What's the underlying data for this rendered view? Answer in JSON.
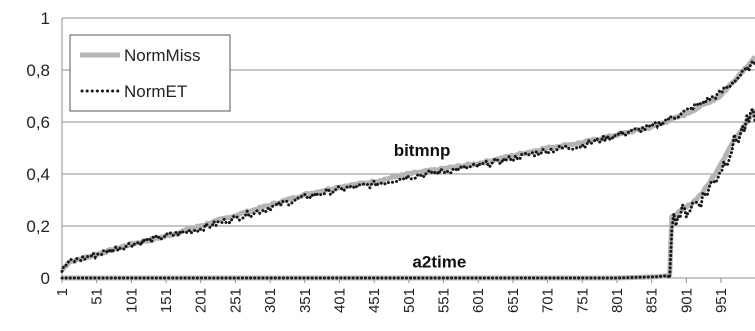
{
  "chart_data": {
    "type": "line",
    "title": "",
    "xlabel": "",
    "ylabel": "",
    "xlim": [
      1,
      1000
    ],
    "ylim": [
      0,
      1
    ],
    "grid": "horizontal",
    "legend_position": "top-left",
    "y_ticks": [
      "0",
      "0,2",
      "0,4",
      "0,6",
      "0,8",
      "1"
    ],
    "x_ticks": [
      "1",
      "51",
      "101",
      "151",
      "201",
      "251",
      "301",
      "351",
      "401",
      "451",
      "501",
      "551",
      "601",
      "651",
      "701",
      "751",
      "801",
      "851",
      "901",
      "951"
    ],
    "x_tick_values": [
      1,
      51,
      101,
      151,
      201,
      251,
      301,
      351,
      401,
      451,
      501,
      551,
      601,
      651,
      701,
      751,
      801,
      851,
      901,
      951
    ],
    "legend": [
      {
        "name": "NormMiss",
        "color": "#b5b5b5",
        "style": "solid"
      },
      {
        "name": "NormET",
        "color": "#1a1a1a",
        "style": "dotted"
      }
    ],
    "annotations": [
      {
        "text": "bitmnp",
        "x": 520,
        "y": 0.47
      },
      {
        "text": "a2time",
        "x": 545,
        "y": 0.04
      }
    ],
    "series": [
      {
        "name": "NormMiss",
        "group": "bitmnp",
        "x": [
          1,
          10,
          50,
          100,
          150,
          200,
          250,
          300,
          350,
          400,
          450,
          500,
          550,
          600,
          650,
          700,
          750,
          800,
          850,
          900,
          950,
          1000
        ],
        "values": [
          0.03,
          0.06,
          0.09,
          0.13,
          0.16,
          0.2,
          0.24,
          0.28,
          0.32,
          0.35,
          0.37,
          0.4,
          0.42,
          0.44,
          0.47,
          0.5,
          0.52,
          0.55,
          0.58,
          0.63,
          0.7,
          0.85
        ]
      },
      {
        "name": "NormET",
        "group": "bitmnp",
        "x": [
          1,
          10,
          50,
          100,
          150,
          200,
          250,
          300,
          350,
          400,
          450,
          500,
          550,
          600,
          650,
          700,
          750,
          800,
          850,
          900,
          950,
          1000
        ],
        "values": [
          0.03,
          0.06,
          0.09,
          0.13,
          0.16,
          0.19,
          0.23,
          0.27,
          0.31,
          0.34,
          0.36,
          0.39,
          0.41,
          0.43,
          0.46,
          0.49,
          0.51,
          0.55,
          0.58,
          0.64,
          0.71,
          0.83
        ]
      },
      {
        "name": "NormMiss",
        "group": "a2time",
        "x": [
          1,
          100,
          200,
          300,
          400,
          500,
          600,
          700,
          800,
          860,
          877,
          878,
          895,
          910,
          925,
          940,
          955,
          970,
          985,
          1000
        ],
        "values": [
          0.0,
          0.0,
          0.0,
          0.0,
          0.0,
          0.0,
          0.0,
          0.0,
          0.0,
          0.005,
          0.01,
          0.23,
          0.26,
          0.29,
          0.33,
          0.39,
          0.46,
          0.53,
          0.59,
          0.65
        ]
      },
      {
        "name": "NormET",
        "group": "a2time",
        "x": [
          1,
          100,
          200,
          300,
          400,
          500,
          600,
          700,
          800,
          860,
          877,
          878,
          895,
          910,
          925,
          940,
          955,
          970,
          985,
          1000
        ],
        "values": [
          0.0,
          0.0,
          0.0,
          0.0,
          0.0,
          0.0,
          0.0,
          0.0,
          0.0,
          0.005,
          0.01,
          0.22,
          0.25,
          0.28,
          0.31,
          0.37,
          0.44,
          0.52,
          0.58,
          0.63
        ]
      }
    ]
  }
}
